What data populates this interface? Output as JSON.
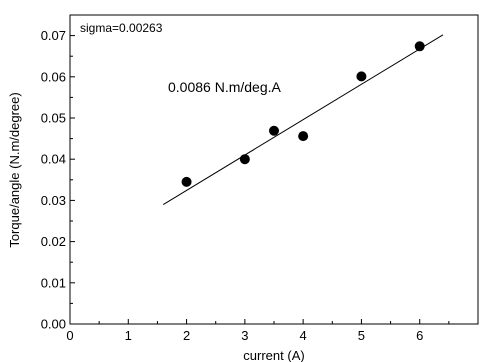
{
  "chart_data": {
    "type": "scatter",
    "xlabel": "current  (A)",
    "ylabel": "Torque/angle (N.m/degree)",
    "xlim": [
      0,
      7
    ],
    "ylim": [
      0,
      0.075
    ],
    "x_ticks": [
      0,
      1,
      2,
      3,
      4,
      5,
      6
    ],
    "y_ticks": [
      0.0,
      0.01,
      0.02,
      0.03,
      0.04,
      0.05,
      0.06,
      0.07
    ],
    "x_tick_labels": [
      "0",
      "1",
      "2",
      "3",
      "4",
      "5",
      "6"
    ],
    "y_tick_labels": [
      "0.00",
      "0.01",
      "0.02",
      "0.03",
      "0.04",
      "0.05",
      "0.06",
      "0.07"
    ],
    "grid": false,
    "points": {
      "x": [
        2,
        3,
        3.5,
        4,
        5,
        6
      ],
      "y": [
        0.0345,
        0.04,
        0.0469,
        0.0456,
        0.0601,
        0.0674
      ]
    },
    "fit_line": {
      "x": [
        1.6,
        6.4
      ],
      "y": [
        0.029,
        0.0702
      ]
    },
    "annotations": {
      "sigma": "sigma=0.00263",
      "slope": "0.0086 N.m/deg.A"
    }
  }
}
